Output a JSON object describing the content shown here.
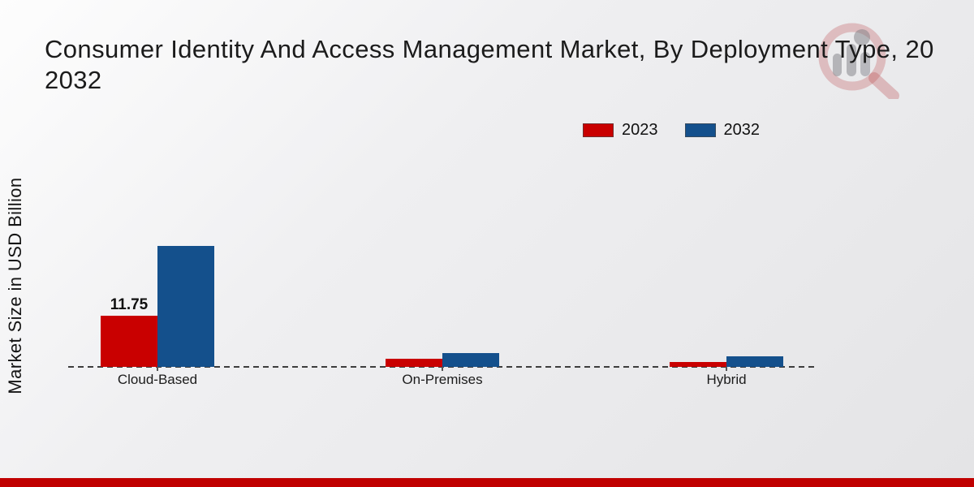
{
  "title": {
    "line1": "Consumer Identity And Access Management Market, By Deployment Type, 20",
    "line2": "2032"
  },
  "y_axis": {
    "label": "Market Size in USD Billion"
  },
  "legend": {
    "items": [
      {
        "label": "2023",
        "color": "#c90000"
      },
      {
        "label": "2032",
        "color": "#14508c"
      }
    ]
  },
  "chart_data": {
    "type": "bar",
    "title_lines": [
      "Consumer Identity And Access Management Market, By Deployment Type, 20",
      "2032"
    ],
    "categories": [
      "Cloud-Based",
      "On-Premises",
      "Hybrid"
    ],
    "series": [
      {
        "name": "2023",
        "color": "#c90000",
        "values": [
          11.75,
          1.9,
          1.2
        ],
        "bar_labels": [
          "11.75",
          "",
          ""
        ]
      },
      {
        "name": "2032",
        "color": "#14508c",
        "values": [
          27.8,
          3.2,
          2.4
        ],
        "bar_labels": [
          "",
          "",
          ""
        ]
      }
    ],
    "ylabel": "Market Size in USD Billion",
    "ylim": [
      0,
      30
    ],
    "y_ticks_visible": false,
    "grid": false,
    "baseline_style": "dashed",
    "legend_position": "top-right",
    "data_label_shown": "11.75 on 2023 Cloud-Based bar only"
  },
  "watermark": {
    "icon": "magnifier-bar-chart-logo"
  },
  "footer": {
    "accent_color": "#c00000"
  },
  "colors": {
    "series_2023_red": "#c90000",
    "series_2032_blue": "#14508c",
    "footer_bar_red": "#c00000",
    "background_light": "#fdfdfd",
    "background_grey": "#e4e4e6",
    "title_text": "#1b1b1b"
  }
}
